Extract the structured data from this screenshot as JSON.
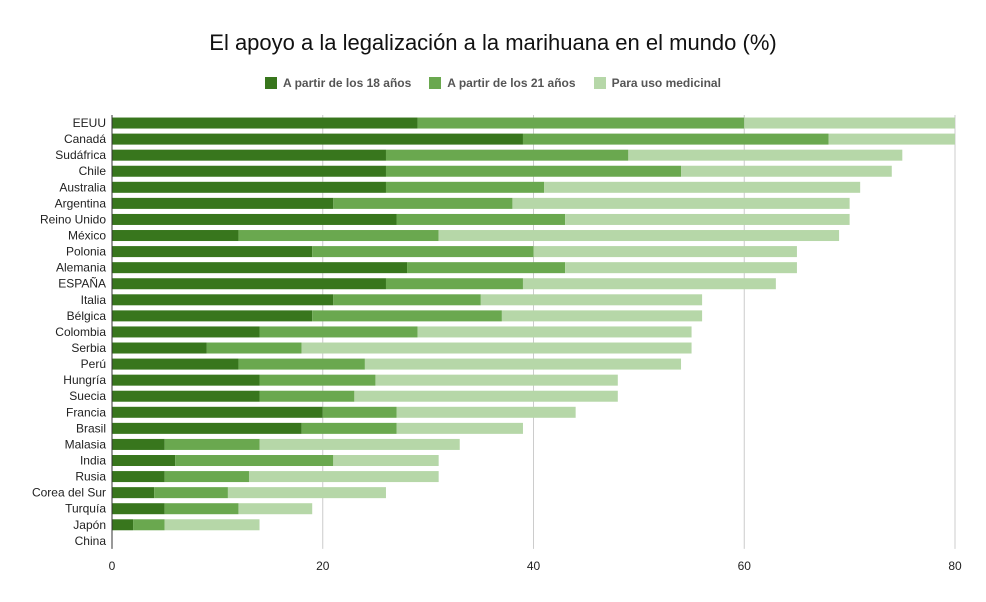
{
  "chart_data": {
    "type": "bar",
    "orientation": "horizontal",
    "stacked": true,
    "title": "El apoyo a la legalización a la marihuana en el mundo (%)",
    "legend_position": "top",
    "grid": true,
    "xlim": [
      0,
      80
    ],
    "xticks": [
      0,
      20,
      40,
      60,
      80
    ],
    "categories": [
      "EEUU",
      "Canadá",
      "Sudáfrica",
      "Chile",
      "Australia",
      "Argentina",
      "Reino Unido",
      "México",
      "Polonia",
      "Alemania",
      "ESPAÑA",
      "Italia",
      "Bélgica",
      "Colombia",
      "Serbia",
      "Perú",
      "Hungría",
      "Suecia",
      "Francia",
      "Brasil",
      "Malasia",
      "India",
      "Rusia",
      "Corea del Sur",
      "Turquía",
      "Japón",
      "China"
    ],
    "series": [
      {
        "name": "A partir de los 18 años",
        "color": "#38761d",
        "values": [
          29,
          39,
          26,
          26,
          26,
          21,
          27,
          12,
          19,
          28,
          26,
          21,
          19,
          14,
          9,
          12,
          14,
          14,
          20,
          18,
          5,
          6,
          5,
          4,
          5,
          2,
          0
        ]
      },
      {
        "name": "A partir de los 21 años",
        "color": "#6aa84f",
        "values": [
          31,
          29,
          23,
          28,
          15,
          17,
          16,
          19,
          21,
          15,
          13,
          14,
          18,
          15,
          9,
          12,
          11,
          9,
          7,
          9,
          9,
          15,
          8,
          7,
          7,
          3,
          0
        ]
      },
      {
        "name": "Para uso medicinal",
        "color": "#b6d7a8",
        "values": [
          20,
          12,
          26,
          20,
          30,
          32,
          27,
          38,
          25,
          22,
          24,
          21,
          19,
          26,
          37,
          30,
          23,
          25,
          17,
          12,
          19,
          10,
          18,
          15,
          7,
          9,
          0
        ]
      }
    ]
  }
}
